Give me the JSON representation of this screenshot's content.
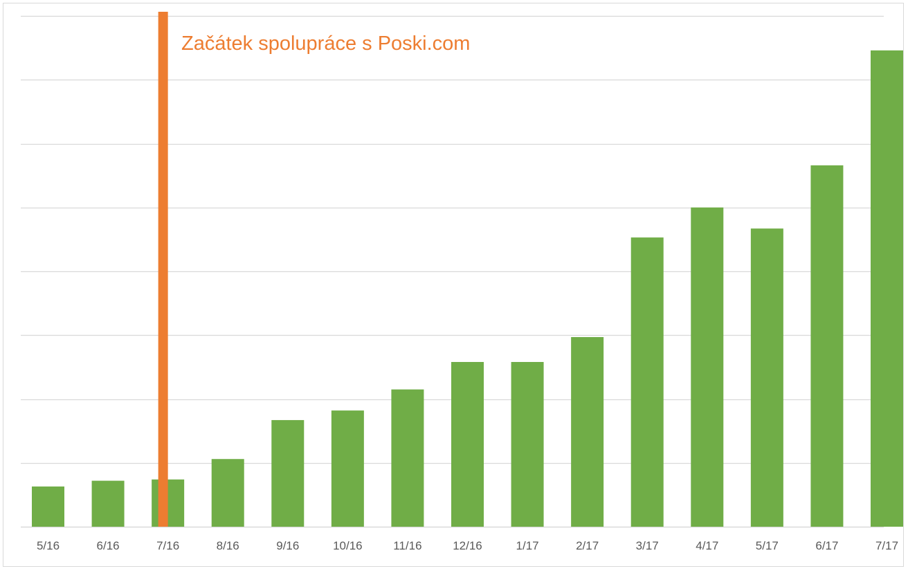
{
  "chart_data": {
    "type": "bar",
    "title": "",
    "xlabel": "",
    "ylabel": "",
    "categories": [
      "5/16",
      "6/16",
      "7/16",
      "8/16",
      "9/16",
      "10/16",
      "11/16",
      "12/16",
      "1/17",
      "2/17",
      "3/17",
      "4/17",
      "5/17",
      "6/17",
      "7/17"
    ],
    "series": [
      {
        "values": [
          6.3,
          7.2,
          7.4,
          10.6,
          16.7,
          18.2,
          21.5,
          25.8,
          25.8,
          29.7,
          45.3,
          50.0,
          46.7,
          56.6,
          74.6
        ]
      }
    ],
    "ylim": [
      0,
      80
    ],
    "gridlines": true,
    "y_tick_labels_shown": false,
    "bar_color": "#70ad47",
    "grid_color": "#d9d9d9",
    "marker": {
      "position_category": "7/16",
      "color": "#ed7d31",
      "label": "Začátek spolupráce s Poski.com"
    }
  }
}
